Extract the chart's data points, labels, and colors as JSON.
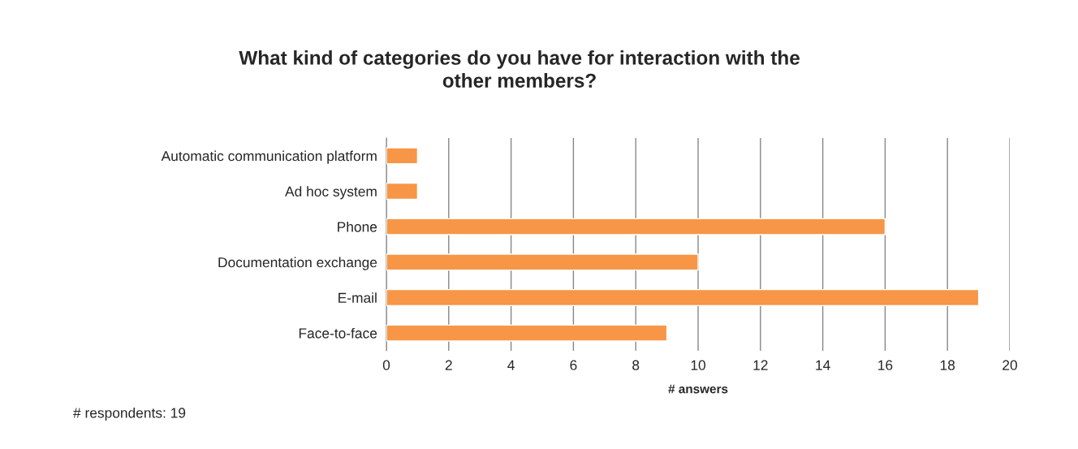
{
  "chart_data": {
    "type": "bar",
    "orientation": "horizontal",
    "title": "What kind of categories do you have for interaction with the\nother members?",
    "xlabel": "# answers",
    "categories": [
      "Automatic communication platform",
      "Ad hoc system",
      "Phone",
      "Documentation exchange",
      "E-mail",
      "Face-to-face"
    ],
    "values": [
      1,
      1,
      16,
      10,
      19,
      9
    ],
    "color": "#f79646",
    "xlim": [
      0,
      20
    ],
    "xticks": [
      0,
      2,
      4,
      6,
      8,
      10,
      12,
      14,
      16,
      18,
      20
    ],
    "grid": "x",
    "annotations": [
      "# respondents: 19"
    ]
  }
}
